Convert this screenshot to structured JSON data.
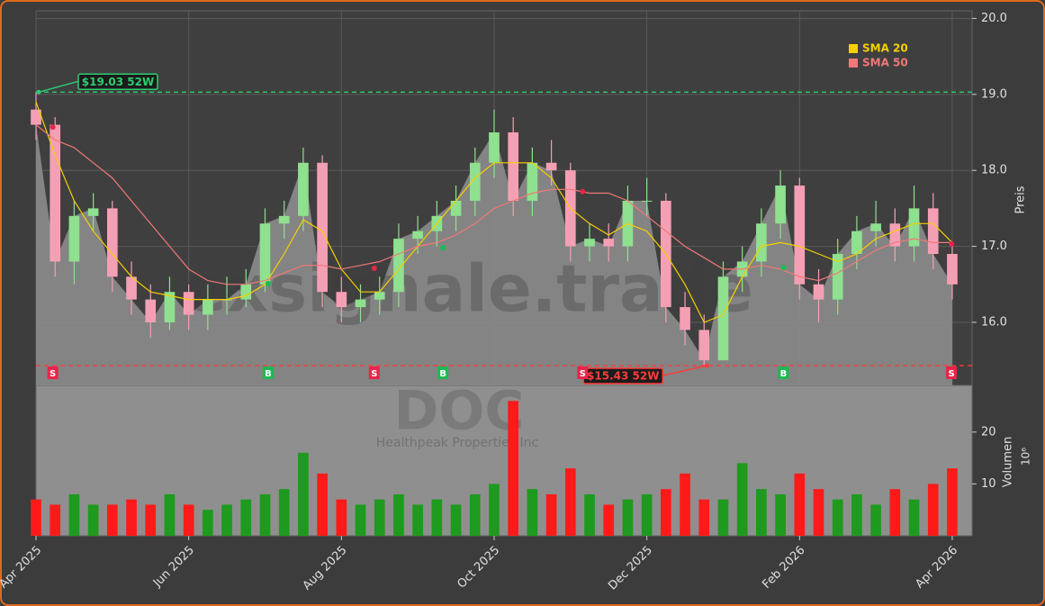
{
  "chart_data": {
    "type": "candlestick",
    "title": "DOC",
    "subtitle": "Healthpeak Properties Inc",
    "watermark": "exsignale.trade",
    "x": [
      0,
      0.25,
      0.5,
      0.75,
      1,
      1.25,
      1.5,
      1.75,
      2,
      2.25,
      2.5,
      2.75,
      3,
      3.25,
      3.5,
      3.75,
      4,
      4.25,
      4.5,
      4.75,
      5,
      5.25,
      5.5,
      5.75,
      6,
      6.25,
      6.5,
      6.75,
      7,
      7.25,
      7.5,
      7.75,
      8,
      8.25,
      8.5,
      8.75,
      9,
      9.25,
      9.5,
      9.75,
      10,
      10.25,
      10.5,
      10.75,
      11,
      11.25,
      11.5,
      11.75,
      12
    ],
    "open": [
      18.8,
      18.6,
      16.8,
      17.4,
      17.5,
      16.6,
      16.3,
      16.0,
      16.4,
      16.1,
      16.3,
      16.3,
      16.5,
      17.3,
      17.4,
      18.1,
      16.4,
      16.2,
      16.3,
      16.4,
      17.1,
      17.2,
      17.4,
      17.6,
      18.1,
      18.5,
      17.6,
      18.1,
      18.0,
      17.0,
      17.1,
      17.0,
      17.6,
      17.6,
      16.2,
      15.9,
      15.5,
      16.6,
      16.8,
      17.3,
      17.8,
      16.5,
      16.3,
      16.9,
      17.2,
      17.3,
      17.0,
      17.5,
      16.9
    ],
    "high": [
      19.03,
      18.7,
      17.6,
      17.7,
      17.6,
      16.8,
      16.5,
      16.6,
      16.5,
      16.5,
      16.6,
      16.7,
      17.5,
      17.6,
      18.3,
      18.2,
      16.6,
      16.5,
      16.6,
      17.3,
      17.4,
      17.6,
      17.8,
      18.3,
      18.8,
      18.7,
      18.3,
      18.4,
      18.1,
      17.3,
      17.3,
      17.8,
      17.9,
      17.7,
      16.4,
      16.1,
      16.8,
      17.0,
      17.5,
      18.0,
      17.9,
      16.7,
      17.1,
      17.4,
      17.6,
      17.5,
      17.8,
      17.7,
      17.0
    ],
    "low": [
      18.4,
      16.6,
      16.5,
      17.2,
      16.4,
      16.1,
      15.8,
      15.9,
      15.9,
      15.9,
      16.1,
      16.2,
      16.4,
      17.1,
      17.2,
      16.2,
      16.0,
      16.0,
      16.1,
      16.2,
      16.9,
      17.0,
      17.2,
      17.4,
      17.9,
      17.4,
      17.4,
      17.8,
      16.8,
      16.8,
      16.8,
      16.8,
      17.4,
      16.0,
      15.7,
      15.43,
      15.5,
      16.4,
      16.6,
      17.1,
      16.3,
      16.0,
      16.1,
      16.7,
      17.0,
      16.8,
      16.8,
      16.7,
      16.3
    ],
    "close": [
      18.6,
      16.8,
      17.4,
      17.5,
      16.6,
      16.3,
      16.0,
      16.4,
      16.1,
      16.3,
      16.3,
      16.5,
      17.3,
      17.4,
      18.1,
      16.4,
      16.2,
      16.3,
      16.4,
      17.1,
      17.2,
      17.4,
      17.6,
      18.1,
      18.5,
      17.6,
      18.1,
      18.0,
      17.0,
      17.1,
      17.0,
      17.6,
      17.6,
      16.2,
      15.9,
      15.5,
      16.6,
      16.8,
      17.3,
      17.8,
      16.5,
      16.3,
      16.9,
      17.2,
      17.3,
      17.0,
      17.5,
      16.9,
      16.5
    ],
    "up_color": "#8fe08f",
    "down_color": "#f4a0b4",
    "area_color": "#8c8c8c",
    "xlim": [
      0,
      12.26
    ],
    "xticks": [
      {
        "value": 0,
        "label": "Apr 2025"
      },
      {
        "value": 2,
        "label": "Jun 2025"
      },
      {
        "value": 4,
        "label": "Aug 2025"
      },
      {
        "value": 6,
        "label": "Oct 2025"
      },
      {
        "value": 8,
        "label": "Dec 2025"
      },
      {
        "value": 10,
        "label": "Feb 2026"
      },
      {
        "value": 12,
        "label": "Apr 2026"
      }
    ],
    "ylim": [
      15.17,
      20.1
    ],
    "yticks": [
      {
        "value": 16,
        "label": "16.0"
      },
      {
        "value": 17,
        "label": "17.0"
      },
      {
        "value": 18,
        "label": "18.0"
      },
      {
        "value": 19,
        "label": "19.0"
      },
      {
        "value": 20,
        "label": "20.0"
      }
    ],
    "ylabel": "Preis",
    "grid": true,
    "legend": "upper right",
    "series": [
      {
        "name": "SMA 20",
        "color": "#f5d000",
        "values": [
          18.9,
          18.2,
          17.6,
          17.2,
          16.9,
          16.6,
          16.4,
          16.35,
          16.3,
          16.3,
          16.3,
          16.35,
          16.5,
          16.9,
          17.35,
          17.2,
          16.7,
          16.4,
          16.4,
          16.7,
          17.0,
          17.3,
          17.6,
          17.9,
          18.1,
          18.1,
          18.1,
          17.9,
          17.5,
          17.3,
          17.15,
          17.3,
          17.2,
          16.9,
          16.5,
          16.0,
          16.1,
          16.6,
          17.0,
          17.05,
          17.0,
          16.9,
          16.8,
          16.9,
          17.1,
          17.2,
          17.3,
          17.3,
          17.05
        ]
      },
      {
        "name": "SMA 50",
        "color": "#f07878",
        "values": [
          18.6,
          18.4,
          18.3,
          18.1,
          17.9,
          17.6,
          17.3,
          17.0,
          16.7,
          16.55,
          16.5,
          16.5,
          16.55,
          16.65,
          16.75,
          16.75,
          16.7,
          16.75,
          16.8,
          16.9,
          17.0,
          17.05,
          17.15,
          17.3,
          17.5,
          17.6,
          17.7,
          17.75,
          17.75,
          17.7,
          17.7,
          17.6,
          17.4,
          17.2,
          17.0,
          16.85,
          16.7,
          16.7,
          16.75,
          16.7,
          16.6,
          16.55,
          16.65,
          16.8,
          16.95,
          17.05,
          17.1,
          17.05,
          17.05
        ]
      }
    ],
    "annotations": [
      {
        "label": "$19.03 52W",
        "value": 19.03,
        "x": 0,
        "color": "#2ecc71"
      },
      {
        "label": "$15.43 52W",
        "value": 15.43,
        "x": 8.75,
        "color": "#ff3b3b"
      }
    ],
    "signals": [
      {
        "label": "S",
        "x": 0.22,
        "price": 18.57,
        "color": "#e8254a"
      },
      {
        "label": "B",
        "x": 3.04,
        "price": 16.51,
        "color": "#1db954"
      },
      {
        "label": "S",
        "x": 4.43,
        "price": 16.71,
        "color": "#e8254a"
      },
      {
        "label": "B",
        "x": 5.33,
        "price": 16.98,
        "color": "#1db954"
      },
      {
        "label": "S",
        "x": 7.16,
        "price": 17.72,
        "color": "#e8254a"
      },
      {
        "label": "B",
        "x": 9.79,
        "price": 16.72,
        "color": "#1db954"
      },
      {
        "label": "S",
        "x": 11.99,
        "price": 17.03,
        "color": "#e8254a"
      }
    ],
    "volume": {
      "ylabel": "Volumen",
      "unit": "10⁶",
      "up_color": "#1e9a1e",
      "down_color": "#ff1a1a",
      "ylim": [
        0,
        29
      ],
      "yticks": [
        10,
        20
      ],
      "values": [
        7,
        6,
        8,
        6,
        6,
        7,
        6,
        8,
        6,
        5,
        6,
        7,
        8,
        9,
        16,
        12,
        7,
        6,
        7,
        8,
        6,
        7,
        6,
        8,
        10,
        26,
        9,
        8,
        13,
        8,
        6,
        7,
        8,
        9,
        12,
        7,
        7,
        14,
        9,
        8,
        12,
        9,
        7,
        8,
        6,
        9,
        7,
        10,
        13
      ]
    }
  }
}
